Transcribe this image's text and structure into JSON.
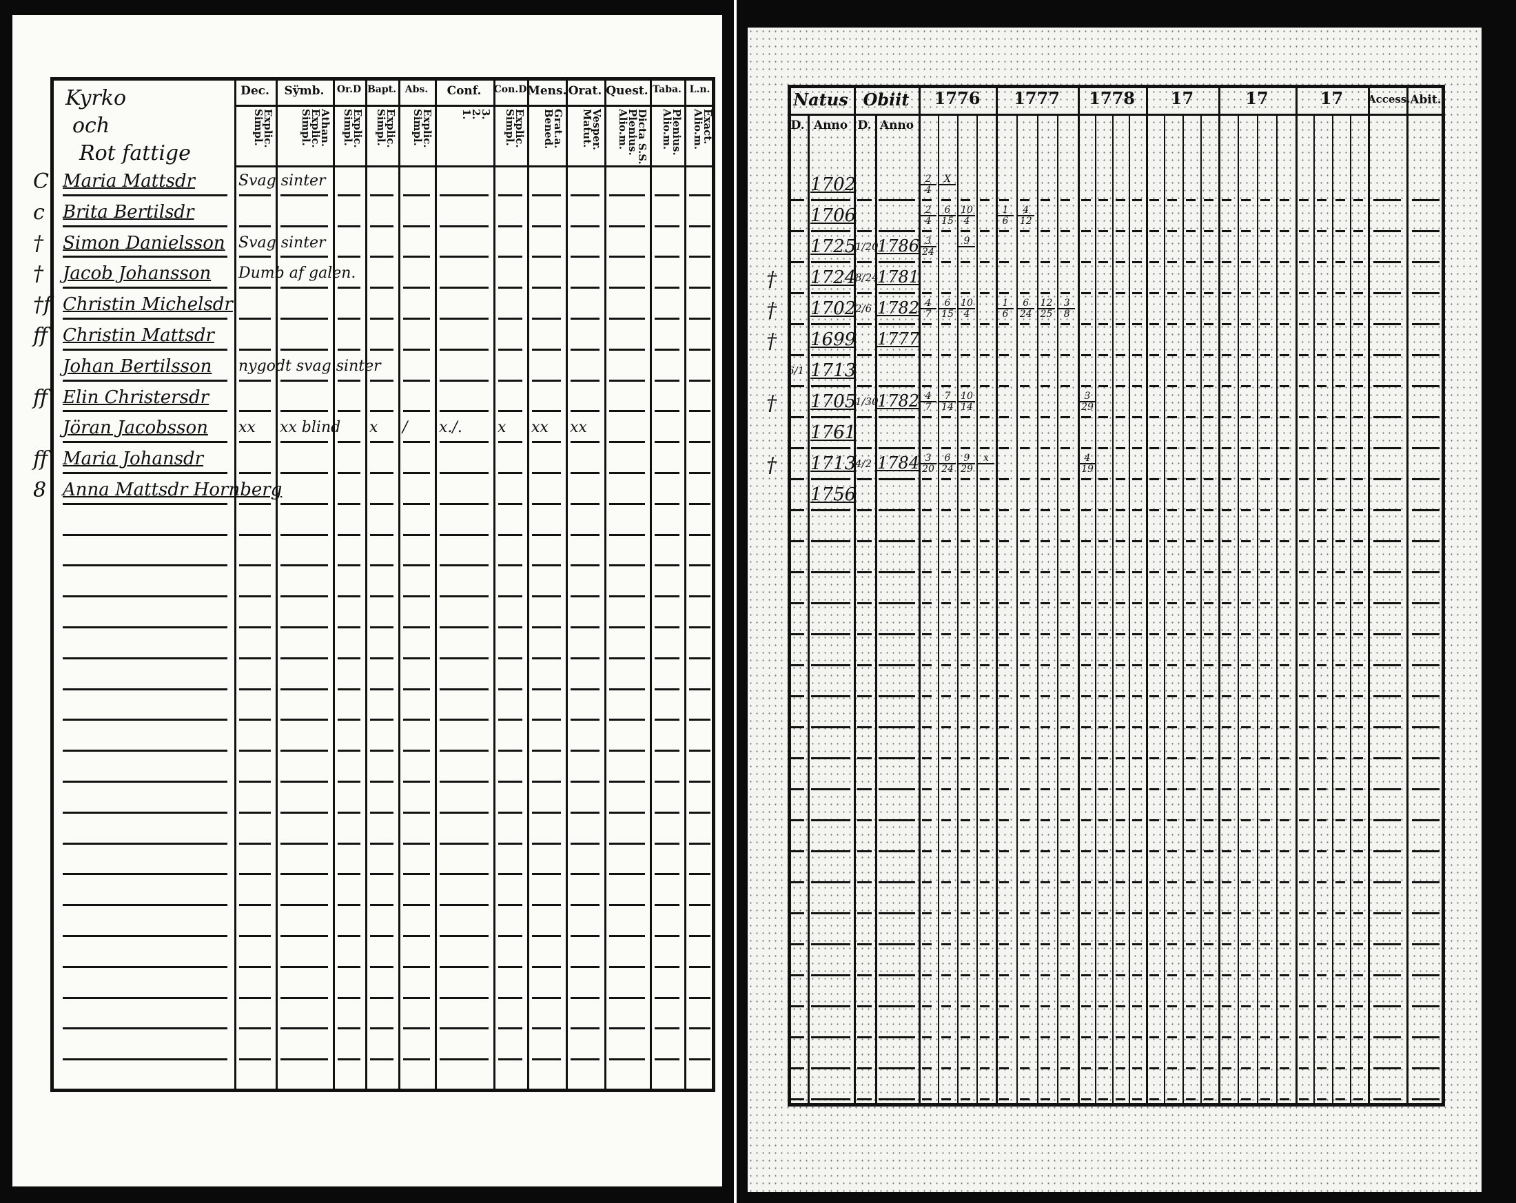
{
  "left_page": {
    "title_lines": [
      "Kyrko",
      "och",
      "Rot fattige"
    ],
    "columns": [
      {
        "label": "Dec.",
        "sub": "Explic.\nSimpl."
      },
      {
        "label": "Sÿmb.",
        "sub": "Athan.\nExplic.\nSimpl."
      },
      {
        "label": "Or.D",
        "sub": "Explic.\nSimpl."
      },
      {
        "label": "Bapt.",
        "sub": "Explic.\nSimpl."
      },
      {
        "label": "Abs.",
        "sub": "Explic.\nSimpl."
      },
      {
        "label": "Conf.",
        "sub": "3.\n2.\n1."
      },
      {
        "label": "Con.D",
        "sub": "Explic.\nSimpl."
      },
      {
        "label": "Mens.",
        "sub": "Grat.a.\nBened."
      },
      {
        "label": "Orat.",
        "sub": "Vesper.\nMatut."
      },
      {
        "label": "Quest.",
        "sub": "Dicta S.S.\nPlenius.\nAlio.m."
      },
      {
        "label": "Taba.",
        "sub": "Plenius.\nAlio.m."
      },
      {
        "label": "L.n.",
        "sub": "Exact.\nAlio.m."
      }
    ],
    "rows": [
      {
        "mark": "C",
        "name": "Maria Mattsdr",
        "notes": [
          {
            "col": 0,
            "text": "Svag sinter"
          }
        ]
      },
      {
        "mark": "c",
        "name": "Brita Bertilsdr",
        "notes": []
      },
      {
        "mark": "†",
        "name": "Simon Danielsson",
        "notes": [
          {
            "col": 0,
            "text": "Svag sinter"
          }
        ]
      },
      {
        "mark": "†",
        "name": "Jacob Johansson",
        "notes": [
          {
            "col": 0,
            "text": "Dumb af galen."
          }
        ]
      },
      {
        "mark": "†f",
        "name": "Christin Michelsdr",
        "notes": []
      },
      {
        "mark": "ff",
        "name": "Christin Mattsdr",
        "notes": []
      },
      {
        "mark": "",
        "name": "Johan Bertilsson",
        "notes": [
          {
            "col": 0,
            "text": "nygodt svag sinter"
          }
        ]
      },
      {
        "mark": "ff",
        "name": "Elin Christersdr",
        "notes": []
      },
      {
        "mark": "",
        "name": "Jöran Jacobsson",
        "notes": [
          {
            "col": 0,
            "text": "xx"
          },
          {
            "col": 1,
            "text": "xx blind"
          },
          {
            "col": 3,
            "text": "x"
          },
          {
            "col": 4,
            "text": "/"
          },
          {
            "col": 5,
            "text": "x./."
          },
          {
            "col": 6,
            "text": "x"
          },
          {
            "col": 7,
            "text": "xx"
          },
          {
            "col": 8,
            "text": "xx"
          }
        ]
      },
      {
        "mark": "ff",
        "name": "Maria Johansdr",
        "notes": []
      },
      {
        "mark": "8",
        "name": "Anna Mattsdr Hornberg",
        "notes": []
      }
    ]
  },
  "right_page": {
    "natus": {
      "label": "Natus",
      "d": "D.",
      "anno": "Anno"
    },
    "obiit": {
      "label": "Obiit",
      "d": "D.",
      "anno": "Anno"
    },
    "years": [
      "1776",
      "1777",
      "1778",
      "17",
      "17",
      "17"
    ],
    "accessit": "Access.",
    "abiit": "Abit.",
    "rows": [
      {
        "mark": "",
        "natus_d": "",
        "natus_anno": "1702",
        "obiit_d": "",
        "obiit_anno": "",
        "entries": [
          {
            "sub": 0,
            "top": "2",
            "bot": "4"
          },
          {
            "sub": 1,
            "top": "X",
            "bot": ""
          }
        ]
      },
      {
        "mark": "",
        "natus_d": "",
        "natus_anno": "1706",
        "obiit_d": "",
        "obiit_anno": "",
        "entries": [
          {
            "sub": 0,
            "top": "2",
            "bot": "4"
          },
          {
            "sub": 1,
            "top": "6",
            "bot": "15"
          },
          {
            "sub": 2,
            "top": "10",
            "bot": "4"
          },
          {
            "sub": 4,
            "top": "1",
            "bot": "6"
          },
          {
            "sub": 5,
            "top": "4",
            "bot": "12"
          }
        ]
      },
      {
        "mark": "",
        "natus_d": "",
        "natus_anno": "1725",
        "obiit_d": "1/20",
        "obiit_anno": "1786",
        "entries": [
          {
            "sub": 0,
            "top": "3",
            "bot": "24"
          },
          {
            "sub": 2,
            "top": "9",
            "bot": ""
          }
        ]
      },
      {
        "mark": "†",
        "natus_d": "",
        "natus_anno": "1724",
        "obiit_d": "8/24",
        "obiit_anno": "1781",
        "entries": []
      },
      {
        "mark": "†",
        "natus_d": "",
        "natus_anno": "1702",
        "obiit_d": "2/6",
        "obiit_anno": "1782",
        "entries": [
          {
            "sub": 0,
            "top": "4",
            "bot": "7"
          },
          {
            "sub": 1,
            "top": "6",
            "bot": "15"
          },
          {
            "sub": 2,
            "top": "10",
            "bot": "4"
          },
          {
            "sub": 4,
            "top": "1",
            "bot": "6"
          },
          {
            "sub": 5,
            "top": "6",
            "bot": "24"
          },
          {
            "sub": 6,
            "top": "12",
            "bot": "25"
          },
          {
            "sub": 7,
            "top": "3",
            "bot": "8"
          }
        ]
      },
      {
        "mark": "†",
        "natus_d": "",
        "natus_anno": "1699",
        "obiit_d": "",
        "obiit_anno": "1777",
        "entries": []
      },
      {
        "mark": "",
        "natus_d": "6/1",
        "natus_anno": "1713",
        "obiit_d": "",
        "obiit_anno": "",
        "entries": []
      },
      {
        "mark": "†",
        "natus_d": "",
        "natus_anno": "1705",
        "obiit_d": "1/30",
        "obiit_anno": "1782",
        "entries": [
          {
            "sub": 0,
            "top": "4",
            "bot": "7"
          },
          {
            "sub": 1,
            "top": "7",
            "bot": "14"
          },
          {
            "sub": 2,
            "top": "10",
            "bot": "14"
          },
          {
            "sub": 8,
            "top": "3",
            "bot": "29"
          }
        ]
      },
      {
        "mark": "",
        "natus_d": "",
        "natus_anno": "1761",
        "obiit_d": "",
        "obiit_anno": "",
        "entries": []
      },
      {
        "mark": "†",
        "natus_d": "",
        "natus_anno": "1713",
        "obiit_d": "4/2",
        "obiit_anno": "1784",
        "entries": [
          {
            "sub": 0,
            "top": "3",
            "bot": "20"
          },
          {
            "sub": 1,
            "top": "6",
            "bot": "24"
          },
          {
            "sub": 2,
            "top": "9",
            "bot": "29"
          },
          {
            "sub": 3,
            "top": "x",
            "bot": ""
          },
          {
            "sub": 8,
            "top": "4",
            "bot": "19"
          }
        ]
      },
      {
        "mark": "",
        "natus_d": "",
        "natus_anno": "1756",
        "obiit_d": "",
        "obiit_anno": "",
        "entries": []
      }
    ]
  }
}
